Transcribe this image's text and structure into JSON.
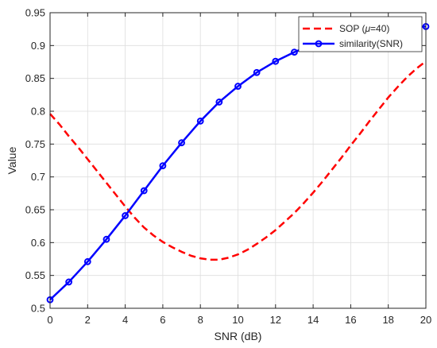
{
  "chart_data": {
    "type": "line",
    "xlabel": "SNR (dB)",
    "ylabel": "Value",
    "xlim": [
      0,
      20
    ],
    "ylim": [
      0.5,
      0.95
    ],
    "grid": true,
    "legend_position": "top-right",
    "x_ticks": [
      "0",
      "2",
      "4",
      "6",
      "8",
      "10",
      "12",
      "14",
      "16",
      "18",
      "20"
    ],
    "y_ticks": [
      "0.5",
      "0.55",
      "0.6",
      "0.65",
      "0.7",
      "0.75",
      "0.8",
      "0.85",
      "0.9",
      "0.95"
    ],
    "series": [
      {
        "name": "SOP (μ=40)",
        "legend_prefix": "SOP (",
        "legend_symbol": "μ",
        "legend_suffix": "=40)",
        "color": "#ff0000",
        "style": "dashed",
        "x": [
          0,
          0.5,
          1,
          1.5,
          2,
          2.5,
          3,
          3.5,
          4,
          4.5,
          5,
          5.5,
          6,
          6.5,
          7,
          7.5,
          8,
          8.5,
          9,
          9.5,
          10,
          10.5,
          11,
          11.5,
          12,
          12.5,
          13,
          13.5,
          14,
          14.5,
          15,
          15.5,
          16,
          16.5,
          17,
          17.5,
          18,
          18.5,
          19,
          19.5,
          20
        ],
        "y": [
          0.796,
          0.78,
          0.762,
          0.745,
          0.727,
          0.709,
          0.691,
          0.673,
          0.655,
          0.638,
          0.623,
          0.611,
          0.601,
          0.593,
          0.586,
          0.58,
          0.576,
          0.574,
          0.574,
          0.577,
          0.582,
          0.589,
          0.598,
          0.608,
          0.619,
          0.632,
          0.645,
          0.66,
          0.676,
          0.693,
          0.711,
          0.729,
          0.748,
          0.766,
          0.785,
          0.803,
          0.821,
          0.837,
          0.852,
          0.865,
          0.876
        ]
      },
      {
        "name": "similarity(SNR)",
        "color": "#0000ff",
        "style": "solid",
        "marker": "circle",
        "x": [
          0,
          1,
          2,
          3,
          4,
          5,
          6,
          7,
          8,
          9,
          10,
          11,
          12,
          13,
          14,
          15,
          16,
          17,
          18,
          19,
          20
        ],
        "y": [
          0.513,
          0.54,
          0.571,
          0.605,
          0.641,
          0.679,
          0.717,
          0.752,
          0.785,
          0.814,
          0.838,
          0.859,
          0.876,
          0.89,
          0.902,
          0.911,
          0.918,
          0.923,
          0.926,
          0.928,
          0.929
        ]
      }
    ]
  }
}
